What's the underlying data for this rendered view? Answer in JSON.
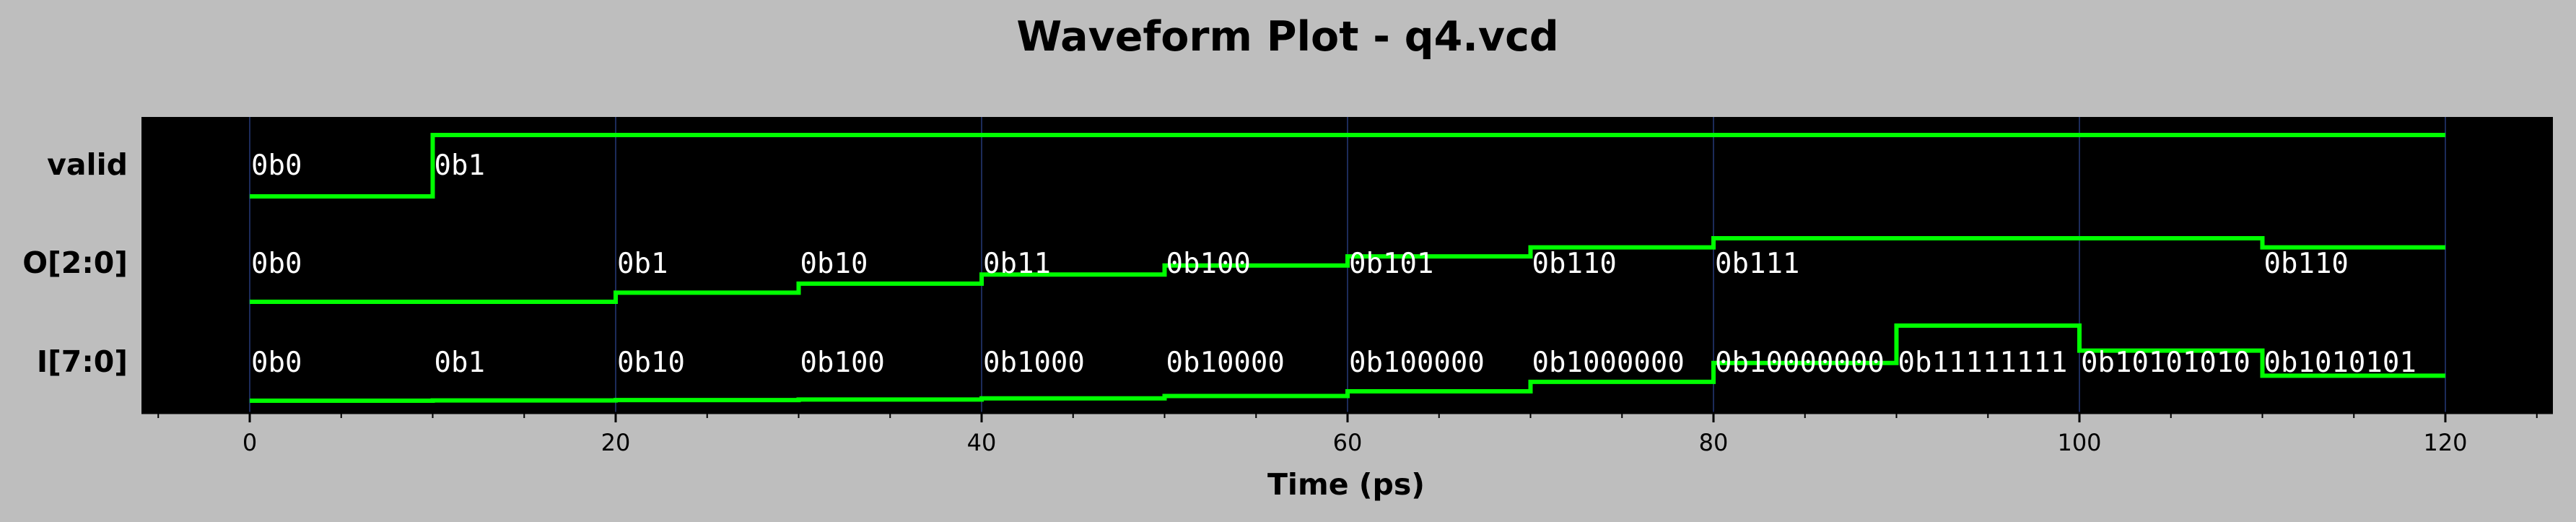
{
  "chart_data": {
    "type": "line",
    "subtype": "digital-waveform",
    "title": "Waveform Plot - q4.vcd",
    "xlabel": "Time (ps)",
    "ylabel": "",
    "xlim": [
      -6,
      125
    ],
    "xticks": [
      0,
      20,
      40,
      60,
      80,
      100,
      120
    ],
    "x_end": 120,
    "grid": "vertical",
    "colors": {
      "background": "#bebebe",
      "plot_bg": "#000000",
      "trace": "#00ff00",
      "grid": "#1c2b5a",
      "text": "#ffffff"
    },
    "series": [
      {
        "name": "valid",
        "segments": [
          {
            "t": 0,
            "label": "0b0",
            "level": 0.0
          },
          {
            "t": 10,
            "label": "0b1",
            "level": 1.0
          }
        ]
      },
      {
        "name": "O[2:0]",
        "segments": [
          {
            "t": 0,
            "label": "0b0",
            "level": 0.0
          },
          {
            "t": 20,
            "label": "0b1",
            "level": 0.143
          },
          {
            "t": 30,
            "label": "0b10",
            "level": 0.286
          },
          {
            "t": 40,
            "label": "0b11",
            "level": 0.429
          },
          {
            "t": 50,
            "label": "0b100",
            "level": 0.571
          },
          {
            "t": 60,
            "label": "0b101",
            "level": 0.714
          },
          {
            "t": 70,
            "label": "0b110",
            "level": 0.857
          },
          {
            "t": 80,
            "label": "0b111",
            "level": 1.0
          },
          {
            "t": 110,
            "label": "0b110",
            "level": 0.857
          }
        ]
      },
      {
        "name": "I[7:0]",
        "segments": [
          {
            "t": 0,
            "label": "0b0",
            "level": 0.0
          },
          {
            "t": 10,
            "label": "0b1",
            "level": 0.004
          },
          {
            "t": 20,
            "label": "0b10",
            "level": 0.008
          },
          {
            "t": 30,
            "label": "0b100",
            "level": 0.016
          },
          {
            "t": 40,
            "label": "0b1000",
            "level": 0.031
          },
          {
            "t": 50,
            "label": "0b10000",
            "level": 0.063
          },
          {
            "t": 60,
            "label": "0b100000",
            "level": 0.125
          },
          {
            "t": 70,
            "label": "0b1000000",
            "level": 0.251
          },
          {
            "t": 80,
            "label": "0b10000000",
            "level": 0.502
          },
          {
            "t": 90,
            "label": "0b11111111",
            "level": 1.0
          },
          {
            "t": 100,
            "label": "0b10101010",
            "level": 0.667
          },
          {
            "t": 110,
            "label": "0b1010101",
            "level": 0.333
          }
        ]
      }
    ]
  }
}
